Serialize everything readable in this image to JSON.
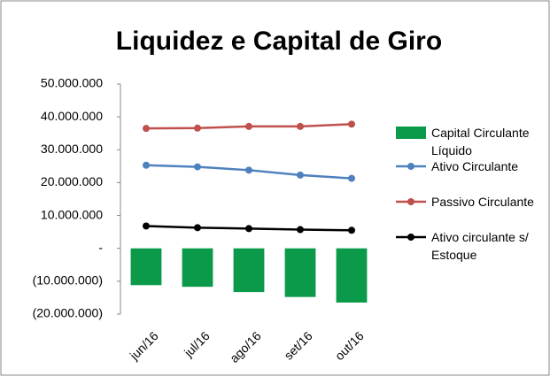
{
  "chart_data": {
    "type": "bar",
    "title": "Liquidez e Capital de Giro",
    "categories": [
      "jun/16",
      "jul/16",
      "ago/16",
      "set/16",
      "out/16"
    ],
    "series": [
      {
        "name": "Capital Circulante Líquido",
        "type": "bar",
        "color": "#0a9a4a",
        "values": [
          -11200000,
          -11700000,
          -13300000,
          -14800000,
          -16500000
        ]
      },
      {
        "name": "Ativo Circulante",
        "type": "line",
        "color": "#4f81bd",
        "values": [
          25300000,
          24800000,
          23800000,
          22300000,
          21300000
        ]
      },
      {
        "name": "Passivo Circulante",
        "type": "line",
        "color": "#c0504d",
        "values": [
          36500000,
          36600000,
          37100000,
          37100000,
          37800000
        ]
      },
      {
        "name": "Ativo circulante s/ Estoque",
        "type": "line",
        "color": "#000000",
        "values": [
          6800000,
          6300000,
          6000000,
          5700000,
          5500000
        ]
      }
    ],
    "ylim": [
      -20000000,
      50000000
    ],
    "yticks": [
      {
        "value": 50000000,
        "label": "50.000.000"
      },
      {
        "value": 40000000,
        "label": "40.000.000"
      },
      {
        "value": 30000000,
        "label": "30.000.000"
      },
      {
        "value": 20000000,
        "label": "20.000.000"
      },
      {
        "value": 10000000,
        "label": "10.000.000"
      },
      {
        "value": 0,
        "label": "-"
      },
      {
        "value": -10000000,
        "label": "(10.000.000)"
      },
      {
        "value": -20000000,
        "label": "(20.000.000)"
      }
    ],
    "grid": false,
    "legend": "right"
  }
}
